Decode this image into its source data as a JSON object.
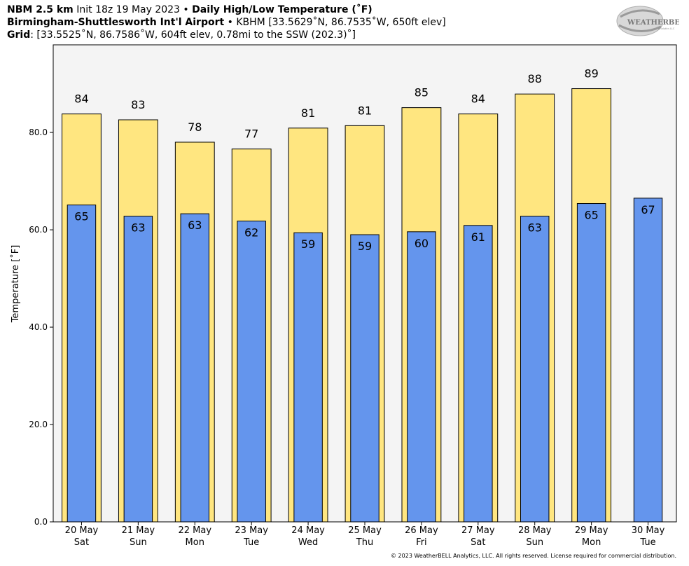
{
  "header": {
    "line1": {
      "model": "NBM 2.5 km",
      "init": " Init 18z 19 May 2023 • ",
      "product": "Daily High/Low Temperature (˚F)"
    },
    "line2": {
      "station": "Birmingham-Shuttlesworth Int'l Airport",
      "info": " • KBHM [33.5629˚N, 86.7535˚W, 650ft elev]"
    },
    "line3": {
      "label": "Grid",
      "info": ": [33.5525˚N, 86.7586˚W, 604ft elev, 0.78mi to the SSW (202.3)˚]"
    }
  },
  "logo": {
    "text_main": "WEATHERBELL",
    "text_sub": "Analytics LLC"
  },
  "copyright": "© 2023 WeatherBELL Analytics, LLC. All rights reserved. License required for commercial distribution.",
  "chart_data": {
    "type": "bar",
    "ylabel": "Temperature [˚F]",
    "ylim": [
      0,
      98
    ],
    "yticks": [
      "0.0",
      "20.0",
      "40.0",
      "60.0",
      "80.0"
    ],
    "categories": [
      {
        "date": "20 May",
        "day": "Sat"
      },
      {
        "date": "21 May",
        "day": "Sun"
      },
      {
        "date": "22 May",
        "day": "Mon"
      },
      {
        "date": "23 May",
        "day": "Tue"
      },
      {
        "date": "24 May",
        "day": "Wed"
      },
      {
        "date": "25 May",
        "day": "Thu"
      },
      {
        "date": "26 May",
        "day": "Fri"
      },
      {
        "date": "27 May",
        "day": "Sat"
      },
      {
        "date": "28 May",
        "day": "Sun"
      },
      {
        "date": "29 May",
        "day": "Mon"
      },
      {
        "date": "30 May",
        "day": "Tue"
      }
    ],
    "series": [
      {
        "key": "high",
        "color": "#ffe680",
        "values": [
          83.8,
          82.6,
          78.0,
          76.6,
          80.9,
          81.4,
          85.1,
          83.8,
          87.9,
          89.0,
          null
        ],
        "labels": [
          "84",
          "83",
          "78",
          "77",
          "81",
          "81",
          "85",
          "84",
          "88",
          "89",
          null
        ]
      },
      {
        "key": "low",
        "color": "#6495ed",
        "values": [
          65.1,
          62.8,
          63.3,
          61.8,
          59.4,
          59.0,
          59.6,
          60.9,
          62.8,
          65.4,
          66.5
        ],
        "labels": [
          "65",
          "63",
          "63",
          "62",
          "59",
          "59",
          "60",
          "61",
          "63",
          "65",
          "67"
        ]
      }
    ],
    "plot_background": "#f4f4f4",
    "grid": false
  }
}
